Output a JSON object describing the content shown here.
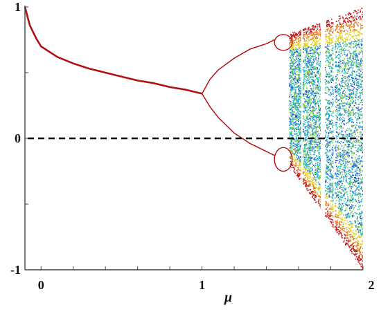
{
  "chart_data": {
    "type": "scatter",
    "title": "",
    "xlabel": "μ",
    "ylabel": "",
    "xlim": [
      -0.1,
      2.0
    ],
    "ylim": [
      -1,
      1
    ],
    "grid": false,
    "legend": "none",
    "x_ticks": [
      {
        "value": 0,
        "label": "0"
      },
      {
        "value": 1,
        "label": "1"
      },
      {
        "value": 2,
        "label": "2"
      }
    ],
    "y_ticks": [
      {
        "value": 1,
        "label": "1"
      },
      {
        "value": 0,
        "label": "0"
      },
      {
        "value": -1,
        "label": "-1"
      }
    ],
    "reference_line": {
      "y": 0,
      "style": "dashed",
      "color": "#000000"
    },
    "series": [
      {
        "kind": "fixed-point branch",
        "color": "#b01010",
        "points": [
          [
            -0.1,
            1.0
          ],
          [
            -0.07,
            0.86
          ],
          [
            -0.03,
            0.76
          ],
          [
            0.0,
            0.7
          ],
          [
            0.1,
            0.62
          ],
          [
            0.2,
            0.57
          ],
          [
            0.3,
            0.53
          ],
          [
            0.4,
            0.5
          ],
          [
            0.5,
            0.47
          ],
          [
            0.6,
            0.44
          ],
          [
            0.7,
            0.42
          ],
          [
            0.8,
            0.39
          ],
          [
            0.9,
            0.37
          ],
          [
            1.0,
            0.34
          ]
        ]
      },
      {
        "kind": "period-2 upper branch",
        "color": "#b01010",
        "points": [
          [
            1.0,
            0.34
          ],
          [
            1.05,
            0.45
          ],
          [
            1.1,
            0.52
          ],
          [
            1.2,
            0.61
          ],
          [
            1.3,
            0.68
          ],
          [
            1.4,
            0.72
          ],
          [
            1.45,
            0.75
          ]
        ]
      },
      {
        "kind": "period-2 lower branch",
        "color": "#b01010",
        "points": [
          [
            1.0,
            0.34
          ],
          [
            1.05,
            0.24
          ],
          [
            1.1,
            0.16
          ],
          [
            1.2,
            0.04
          ],
          [
            1.3,
            -0.04
          ],
          [
            1.4,
            -0.1
          ],
          [
            1.45,
            -0.13
          ]
        ]
      },
      {
        "kind": "period-4 bubbles",
        "color": "#b01010",
        "bubbles": [
          {
            "x0": 1.45,
            "x1": 1.56,
            "y": 0.73,
            "half_height": 0.06
          },
          {
            "x0": 1.45,
            "x1": 1.56,
            "y": -0.16,
            "half_height": 0.09
          }
        ]
      },
      {
        "kind": "chaotic region",
        "colors": [
          "#1e3cc8",
          "#1ca0e0",
          "#20c8c0",
          "#80d040",
          "#e0d020",
          "#e08020",
          "#c01818"
        ],
        "x_range": [
          1.54,
          2.0
        ],
        "upper_envelope": [
          [
            1.54,
            0.8
          ],
          [
            2.0,
            1.0
          ]
        ],
        "lower_envelope": [
          [
            1.54,
            -0.2
          ],
          [
            2.0,
            -1.0
          ]
        ],
        "periodic_windows": [
          {
            "x": 1.75,
            "width": 0.025
          },
          {
            "x": 1.62,
            "width": 0.008
          },
          {
            "x": 1.82,
            "width": 0.006
          }
        ]
      }
    ]
  }
}
